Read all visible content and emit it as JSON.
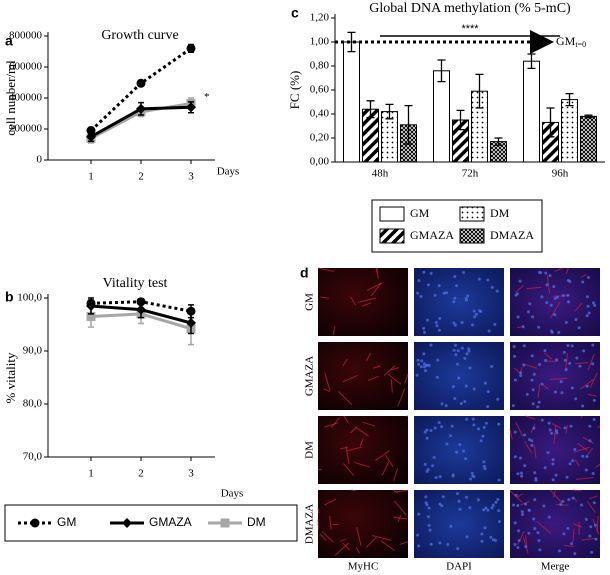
{
  "chart_data": [
    {
      "type": "line",
      "panel_label": "a",
      "title": "Growth curve",
      "y_label": "cell nunber/ml",
      "x_label": "Days",
      "x": [
        1,
        2,
        3
      ],
      "xlim": [
        0.14,
        3.48
      ],
      "xticks": [
        1,
        2,
        3
      ],
      "ylim": [
        0,
        800000
      ],
      "yticks": [
        0,
        200000,
        400000,
        600000,
        800000
      ],
      "series": [
        {
          "name": "GM",
          "color": "#000000",
          "marker": "circle",
          "dashed": true,
          "values": [
            190000,
            495000,
            720000
          ],
          "errors": [
            20000,
            8000,
            25000
          ]
        },
        {
          "name": "GMAZA",
          "color": "#000000",
          "marker": "diamond",
          "dashed": false,
          "values": [
            150000,
            330000,
            340000
          ],
          "errors": [
            30000,
            40000,
            35000
          ]
        },
        {
          "name": "DM",
          "color": "#a6a6a6",
          "marker": "square",
          "dashed": false,
          "values": [
            140000,
            310000,
            365000
          ],
          "errors": [
            30000,
            30000,
            35000
          ]
        }
      ],
      "annotation": "*"
    },
    {
      "type": "line",
      "panel_label": "b",
      "title": "Vitality test",
      "y_label": "% vitality",
      "x_label": "Days",
      "x": [
        1,
        2,
        3
      ],
      "xlim": [
        0.14,
        3.48
      ],
      "xticks": [
        1,
        2,
        3
      ],
      "ylim": [
        70,
        100
      ],
      "yticks": [
        {
          "value": 70,
          "label": "70,0"
        },
        {
          "value": 80,
          "label": "80,0"
        },
        {
          "value": 90,
          "label": "90,0"
        },
        {
          "value": 100,
          "label": "100,0"
        }
      ],
      "series": [
        {
          "name": "GM",
          "color": "#000000",
          "marker": "circle",
          "dashed": true,
          "values": [
            99.0,
            99.3,
            97.5
          ],
          "errors": [
            0.6,
            0.5,
            1.2
          ]
        },
        {
          "name": "GMAZA",
          "color": "#000000",
          "marker": "diamond",
          "dashed": false,
          "values": [
            98.5,
            97.8,
            95.3
          ],
          "errors": [
            1.5,
            1.5,
            2.0
          ]
        },
        {
          "name": "DM",
          "color": "#a6a6a6",
          "marker": "square",
          "dashed": false,
          "values": [
            96.5,
            97.0,
            94.2
          ],
          "errors": [
            2.0,
            1.8,
            3.0
          ]
        }
      ]
    },
    {
      "type": "bar",
      "panel_label": "c",
      "title": "Global DNA methylation (% 5-mC)",
      "y_label": "FC (%)",
      "categories": [
        "48h",
        "72h",
        "96h"
      ],
      "ylim": [
        0,
        1.2
      ],
      "yticks": [
        {
          "value": 0,
          "label": "0,00"
        },
        {
          "value": 0.2,
          "label": "0,20"
        },
        {
          "value": 0.4,
          "label": "0,40"
        },
        {
          "value": 0.6,
          "label": "0,60"
        },
        {
          "value": 0.8,
          "label": "0,80"
        },
        {
          "value": 1.0,
          "label": "1,00"
        },
        {
          "value": 1.2,
          "label": "1,20"
        }
      ],
      "series": [
        {
          "name": "GM",
          "pattern": "none",
          "values": [
            1.0,
            0.76,
            0.84
          ],
          "errors": [
            0.08,
            0.09,
            0.06
          ]
        },
        {
          "name": "GMAZA",
          "pattern": "diagonal",
          "values": [
            0.44,
            0.35,
            0.33
          ],
          "errors": [
            0.07,
            0.08,
            0.12
          ]
        },
        {
          "name": "DM",
          "pattern": "dots",
          "values": [
            0.42,
            0.59,
            0.52
          ],
          "errors": [
            0.06,
            0.14,
            0.05
          ]
        },
        {
          "name": "DMAZA",
          "pattern": "crosshatch",
          "values": [
            0.31,
            0.17,
            0.38
          ],
          "errors": [
            0.16,
            0.03,
            0.01
          ]
        }
      ],
      "reference_line": {
        "value": 1.0,
        "label": "GM",
        "subscript": "t=0"
      },
      "annotation": "****"
    }
  ],
  "image_grid": {
    "panel_label": "d",
    "rows": [
      "GM",
      "GMAZA",
      "DM",
      "DMAZA"
    ],
    "columns": [
      "MyHC",
      "DAPI",
      "Merge"
    ]
  }
}
